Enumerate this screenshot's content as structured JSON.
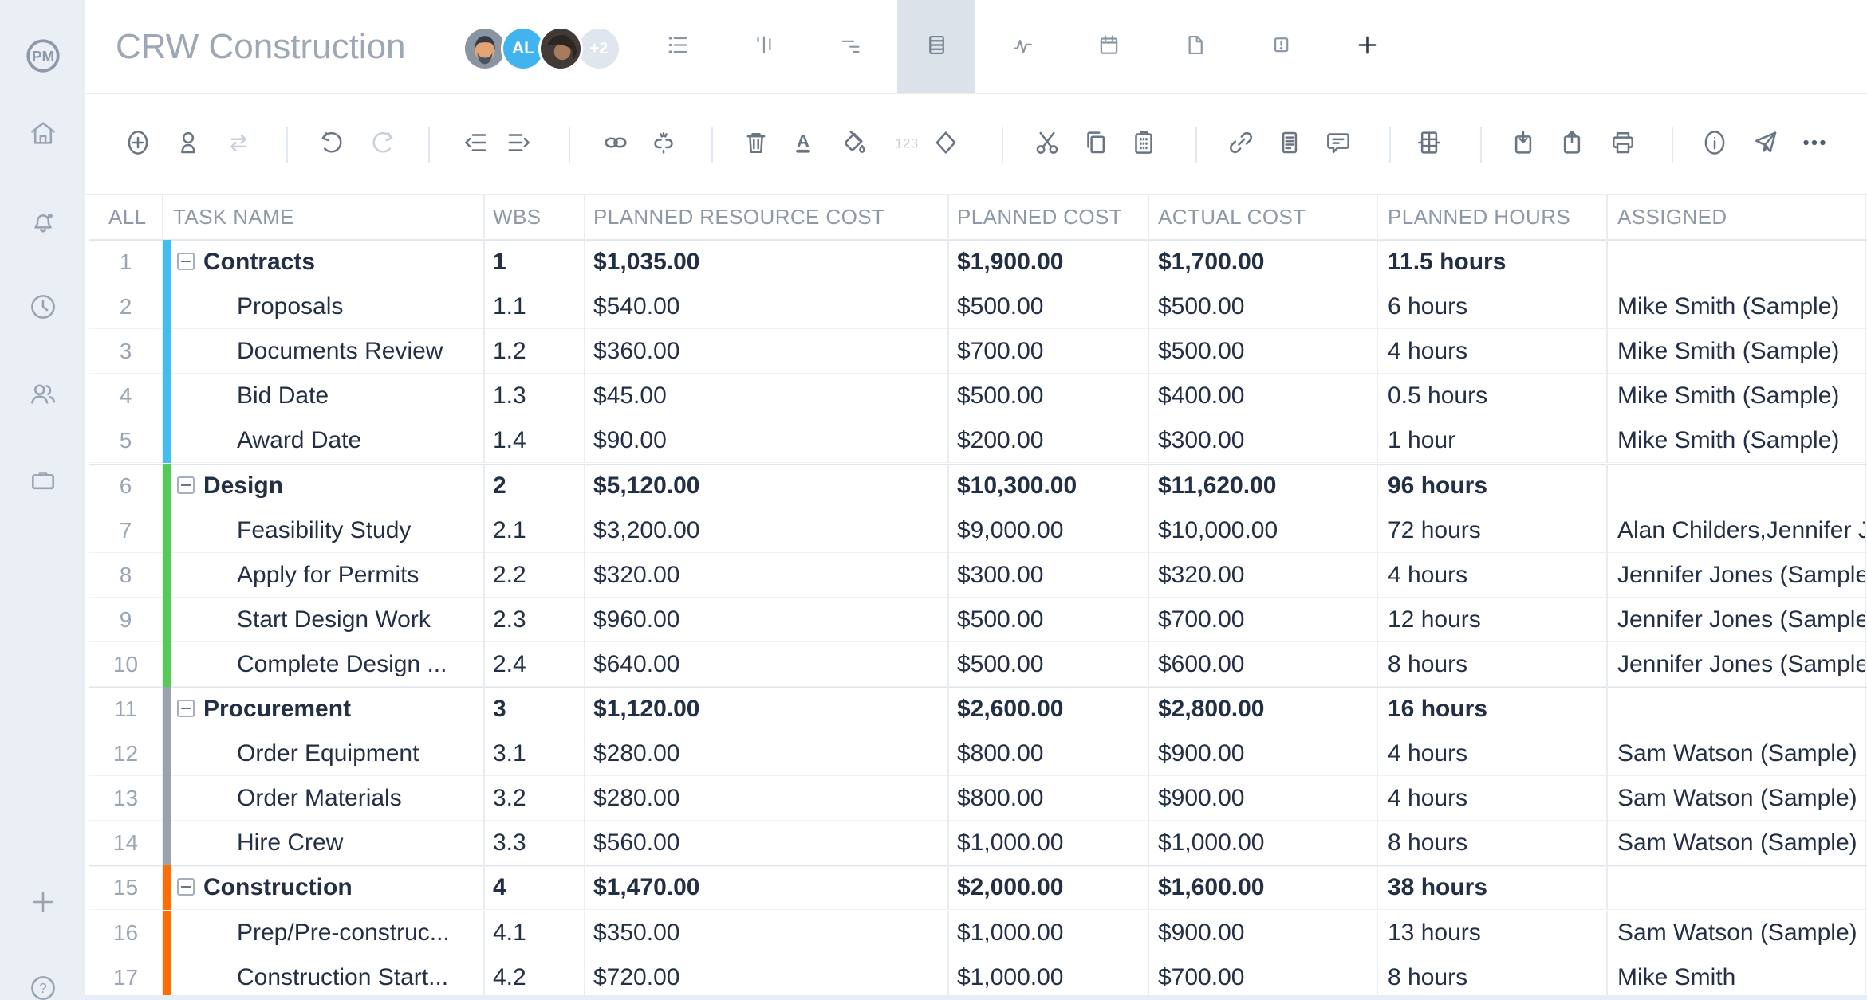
{
  "app": {
    "logo_text": "PM"
  },
  "sidebar": {
    "icons": [
      "home",
      "notifications",
      "time",
      "team",
      "portfolio"
    ],
    "footer_icons": [
      "add",
      "help"
    ]
  },
  "header": {
    "title": "CRW Construction",
    "avatars": [
      {
        "kind": "photo-man",
        "label": ""
      },
      {
        "kind": "initials",
        "label": "AL",
        "color": "#41b4ef"
      },
      {
        "kind": "photo-woman",
        "label": ""
      },
      {
        "kind": "count",
        "label": "+2",
        "color": "#dfe6ee"
      }
    ],
    "tabs": [
      {
        "name": "list-view",
        "active": false
      },
      {
        "name": "board-view",
        "active": false
      },
      {
        "name": "gantt-view",
        "active": false
      },
      {
        "name": "sheet-view",
        "active": true
      },
      {
        "name": "activity-view",
        "active": false
      },
      {
        "name": "calendar-view",
        "active": false
      },
      {
        "name": "page-view",
        "active": false
      },
      {
        "name": "alert-view",
        "active": false
      },
      {
        "name": "add-tab",
        "active": false
      }
    ]
  },
  "toolbar": {
    "items": [
      {
        "name": "add-task"
      },
      {
        "name": "assign-user"
      },
      {
        "name": "sync",
        "disabled": true
      },
      {
        "name": "divider"
      },
      {
        "name": "undo"
      },
      {
        "name": "redo",
        "disabled": true
      },
      {
        "name": "divider"
      },
      {
        "name": "outdent"
      },
      {
        "name": "indent"
      },
      {
        "name": "divider"
      },
      {
        "name": "link-tasks"
      },
      {
        "name": "unlink-tasks"
      },
      {
        "name": "divider"
      },
      {
        "name": "delete"
      },
      {
        "name": "font-color"
      },
      {
        "name": "fill-color"
      },
      {
        "name": "number-format",
        "disabled": true
      },
      {
        "name": "milestone"
      },
      {
        "name": "divider"
      },
      {
        "name": "cut"
      },
      {
        "name": "copy"
      },
      {
        "name": "paste"
      },
      {
        "name": "divider"
      },
      {
        "name": "attachment"
      },
      {
        "name": "notes"
      },
      {
        "name": "comment"
      },
      {
        "name": "divider"
      },
      {
        "name": "columns"
      },
      {
        "name": "divider"
      },
      {
        "name": "import"
      },
      {
        "name": "export"
      },
      {
        "name": "print"
      },
      {
        "name": "divider"
      },
      {
        "name": "info"
      },
      {
        "name": "share"
      },
      {
        "name": "more",
        "dark": true
      }
    ]
  },
  "table": {
    "columns": [
      {
        "key": "num",
        "label": "ALL"
      },
      {
        "key": "name",
        "label": "TASK NAME"
      },
      {
        "key": "wbs",
        "label": "WBS"
      },
      {
        "key": "prc",
        "label": "PLANNED RESOURCE COST"
      },
      {
        "key": "pc",
        "label": "PLANNED COST"
      },
      {
        "key": "ac",
        "label": "ACTUAL COST"
      },
      {
        "key": "ph",
        "label": "PLANNED HOURS"
      },
      {
        "key": "assigned",
        "label": "ASSIGNED"
      }
    ],
    "group_colors": {
      "blue": "#41bdf2",
      "green": "#54cb57",
      "gray": "#9aa2ae",
      "orange": "#ff6d05"
    },
    "rows": [
      {
        "num": "1",
        "name": "Contracts",
        "parent": true,
        "group": "blue",
        "wbs": "1",
        "prc": "$1,035.00",
        "pc": "$1,900.00",
        "ac": "$1,700.00",
        "ph": "11.5 hours",
        "assigned": ""
      },
      {
        "num": "2",
        "name": "Proposals",
        "parent": false,
        "group": "blue",
        "wbs": "1.1",
        "prc": "$540.00",
        "pc": "$500.00",
        "ac": "$500.00",
        "ph": "6 hours",
        "assigned": "Mike Smith (Sample)"
      },
      {
        "num": "3",
        "name": "Documents Review",
        "parent": false,
        "group": "blue",
        "wbs": "1.2",
        "prc": "$360.00",
        "pc": "$700.00",
        "ac": "$500.00",
        "ph": "4 hours",
        "assigned": "Mike Smith (Sample)"
      },
      {
        "num": "4",
        "name": "Bid Date",
        "parent": false,
        "group": "blue",
        "wbs": "1.3",
        "prc": "$45.00",
        "pc": "$500.00",
        "ac": "$400.00",
        "ph": "0.5 hours",
        "assigned": "Mike Smith (Sample)"
      },
      {
        "num": "5",
        "name": "Award Date",
        "parent": false,
        "group": "blue",
        "wbs": "1.4",
        "prc": "$90.00",
        "pc": "$200.00",
        "ac": "$300.00",
        "ph": "1 hour",
        "assigned": "Mike Smith (Sample)"
      },
      {
        "num": "6",
        "name": "Design",
        "parent": true,
        "group": "green",
        "wbs": "2",
        "prc": "$5,120.00",
        "pc": "$10,300.00",
        "ac": "$11,620.00",
        "ph": "96 hours",
        "assigned": ""
      },
      {
        "num": "7",
        "name": "Feasibility Study",
        "parent": false,
        "group": "green",
        "wbs": "2.1",
        "prc": "$3,200.00",
        "pc": "$9,000.00",
        "ac": "$10,000.00",
        "ph": "72 hours",
        "assigned": "Alan Childers,Jennifer Jones (Sample)"
      },
      {
        "num": "8",
        "name": "Apply for Permits",
        "parent": false,
        "group": "green",
        "wbs": "2.2",
        "prc": "$320.00",
        "pc": "$300.00",
        "ac": "$320.00",
        "ph": "4 hours",
        "assigned": "Jennifer Jones (Sample)"
      },
      {
        "num": "9",
        "name": "Start Design Work",
        "parent": false,
        "group": "green",
        "wbs": "2.3",
        "prc": "$960.00",
        "pc": "$500.00",
        "ac": "$700.00",
        "ph": "12 hours",
        "assigned": "Jennifer Jones (Sample)"
      },
      {
        "num": "10",
        "name": "Complete Design ...",
        "parent": false,
        "group": "green",
        "wbs": "2.4",
        "prc": "$640.00",
        "pc": "$500.00",
        "ac": "$600.00",
        "ph": "8 hours",
        "assigned": "Jennifer Jones (Sample)"
      },
      {
        "num": "11",
        "name": "Procurement",
        "parent": true,
        "group": "gray",
        "wbs": "3",
        "prc": "$1,120.00",
        "pc": "$2,600.00",
        "ac": "$2,800.00",
        "ph": "16 hours",
        "assigned": ""
      },
      {
        "num": "12",
        "name": "Order Equipment",
        "parent": false,
        "group": "gray",
        "wbs": "3.1",
        "prc": "$280.00",
        "pc": "$800.00",
        "ac": "$900.00",
        "ph": "4 hours",
        "assigned": "Sam Watson (Sample)"
      },
      {
        "num": "13",
        "name": "Order Materials",
        "parent": false,
        "group": "gray",
        "wbs": "3.2",
        "prc": "$280.00",
        "pc": "$800.00",
        "ac": "$900.00",
        "ph": "4 hours",
        "assigned": "Sam Watson (Sample)"
      },
      {
        "num": "14",
        "name": "Hire Crew",
        "parent": false,
        "group": "gray",
        "wbs": "3.3",
        "prc": "$560.00",
        "pc": "$1,000.00",
        "ac": "$1,000.00",
        "ph": "8 hours",
        "assigned": "Sam Watson (Sample)"
      },
      {
        "num": "15",
        "name": "Construction",
        "parent": true,
        "group": "orange",
        "wbs": "4",
        "prc": "$1,470.00",
        "pc": "$2,000.00",
        "ac": "$1,600.00",
        "ph": "38 hours",
        "assigned": ""
      },
      {
        "num": "16",
        "name": "Prep/Pre-construc...",
        "parent": false,
        "group": "orange",
        "wbs": "4.1",
        "prc": "$350.00",
        "pc": "$1,000.00",
        "ac": "$900.00",
        "ph": "13 hours",
        "assigned": "Sam Watson (Sample)"
      },
      {
        "num": "17",
        "name": "Construction Start...",
        "parent": false,
        "group": "orange",
        "wbs": "4.2",
        "prc": "$720.00",
        "pc": "$1,000.00",
        "ac": "$700.00",
        "ph": "8 hours",
        "assigned": "Mike Smith"
      }
    ]
  }
}
